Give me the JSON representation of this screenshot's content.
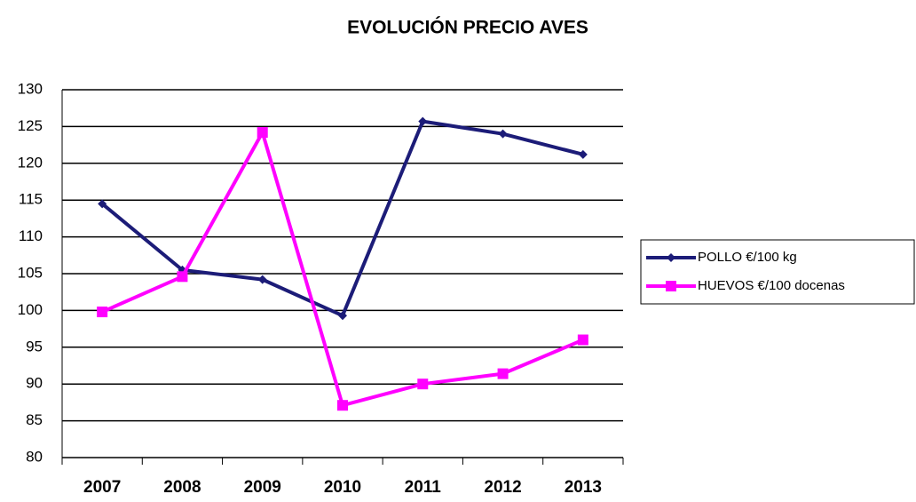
{
  "chart_data": {
    "type": "line",
    "title": "EVOLUCIÓN PRECIO AVES",
    "categories": [
      "2007",
      "2008",
      "2009",
      "2010",
      "2011",
      "2012",
      "2013"
    ],
    "series": [
      {
        "name": "POLLO €/100 kg",
        "color": "#1c1c78",
        "values": [
          114.5,
          105.5,
          104.2,
          99.3,
          125.7,
          124,
          121.2
        ]
      },
      {
        "name": "HUEVOS €/100 docenas",
        "color": "#ff00ff",
        "values": [
          99.8,
          104.6,
          124.2,
          87.1,
          90,
          91.4,
          96
        ]
      }
    ],
    "ylim": [
      80,
      130
    ],
    "yticks": [
      80,
      85,
      90,
      95,
      100,
      105,
      110,
      115,
      120,
      125,
      130
    ],
    "grid": true,
    "legend": "right"
  }
}
